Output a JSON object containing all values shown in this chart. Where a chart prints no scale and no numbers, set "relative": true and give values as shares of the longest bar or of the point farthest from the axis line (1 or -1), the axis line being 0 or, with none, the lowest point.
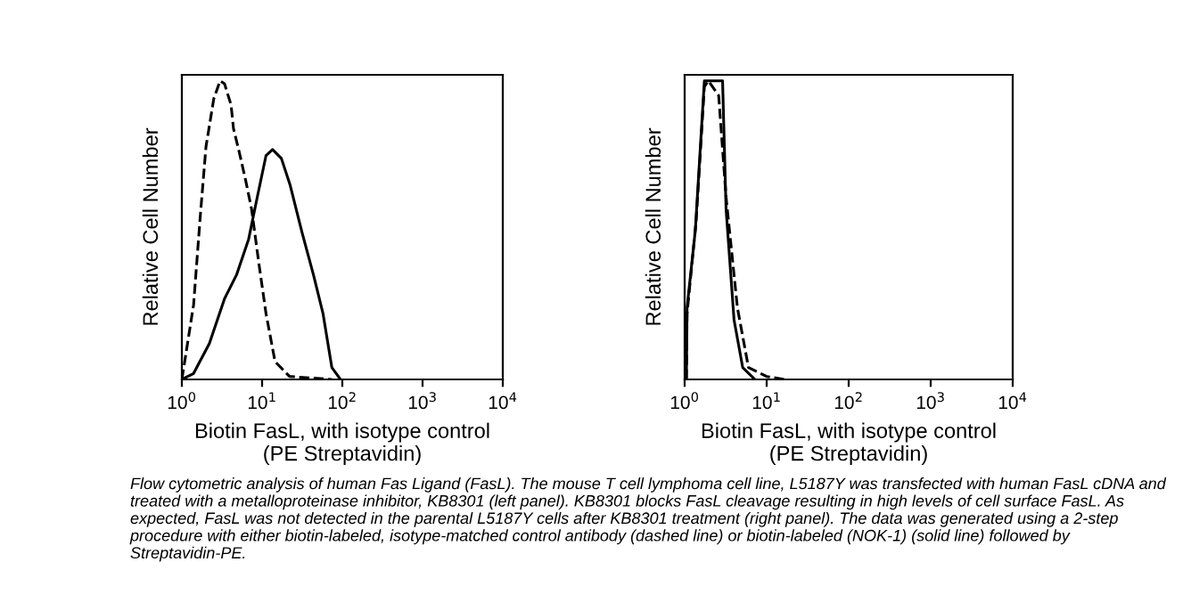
{
  "chart_data": [
    {
      "type": "line",
      "relative": true,
      "log": "x",
      "xlabel": "Biotin FasL, with isotype control\n(PE Streptavidin)",
      "ylabel": "Relative Cell Number",
      "xlim": [
        1,
        10000
      ],
      "xticks": [
        {
          "value": 1,
          "label": "10$^{0}$"
        },
        {
          "value": 10,
          "label": "10$^{1}$"
        },
        {
          "value": 100,
          "label": "10$^{2}$"
        },
        {
          "value": 1000,
          "label": "10$^{3}$"
        },
        {
          "value": 10000,
          "label": "10$^{4}$"
        }
      ],
      "grid": false,
      "series": [
        {
          "color": "#000000",
          "line_style": "dashed",
          "x": [
            1,
            1.1,
            1.4,
            1.7,
            2.0,
            2.5,
            3.0,
            3.4,
            4.1,
            4.4,
            5.2,
            6.2,
            7.4,
            9.1,
            11.2,
            14.5,
            22,
            74
          ],
          "values": [
            0,
            0.07,
            0.25,
            0.55,
            0.78,
            0.94,
            1.0,
            0.99,
            0.92,
            0.84,
            0.76,
            0.67,
            0.57,
            0.39,
            0.22,
            0.06,
            0.01,
            0
          ]
        },
        {
          "color": "#000000",
          "line_style": "solid",
          "x": [
            1,
            1.4,
            2.2,
            3.4,
            4.8,
            6.8,
            8.7,
            11.2,
            13.5,
            17.4,
            22.4,
            31.6,
            43.7,
            57.5,
            74,
            95
          ],
          "values": [
            0,
            0.02,
            0.12,
            0.27,
            0.35,
            0.47,
            0.61,
            0.75,
            0.77,
            0.74,
            0.65,
            0.49,
            0.35,
            0.22,
            0.04,
            0
          ]
        }
      ],
      "annotations": [
        "Flow cytometric analysis of human Fas Ligand (FasL). The mouse T cell lymphoma cell line, L5187Y was transfected with human FasL cDNA and treated with a metalloproteinase inhibitor, KB8301 (left panel). KB8301 blocks FasL cleavage resulting in high levels of cell surface FasL. As expected, FasL was not detected in the parental L5187Y cells after KB8301 treatment (right panel). The data was generated using a 2-step procedure with either biotin-labeled, isotype-matched control antibody (dashed line) or biotin-labeled (NOK-1) (solid line) followed by Streptavidin-PE."
      ]
    },
    {
      "type": "line",
      "relative": true,
      "log": "x",
      "xlabel": "Biotin FasL, with isotype control\n(PE Streptavidin)",
      "ylabel": "Relative Cell Number",
      "xlim": [
        1,
        10000
      ],
      "xticks": [
        {
          "value": 1,
          "label": "10$^{0}$"
        },
        {
          "value": 10,
          "label": "10$^{1}$"
        },
        {
          "value": 100,
          "label": "10$^{2}$"
        },
        {
          "value": 1000,
          "label": "10$^{3}$"
        },
        {
          "value": 10000,
          "label": "10$^{4}$"
        }
      ],
      "grid": false,
      "series": [
        {
          "color": "#000000",
          "line_style": "dashed",
          "x": [
            1.05,
            1.07,
            1.38,
            1.74,
            1.95,
            2.6,
            3.2,
            4.4,
            6.0,
            10,
            16.6
          ],
          "values": [
            0,
            0.22,
            0.53,
            0.98,
            1,
            0.95,
            0.61,
            0.24,
            0.04,
            0.01,
            0
          ]
        },
        {
          "color": "#000000",
          "line_style": "solid",
          "x": [
            1.05,
            1.07,
            1.35,
            1.74,
            2.9,
            3.2,
            4.0,
            5.1,
            7.2
          ],
          "values": [
            0,
            0.24,
            0.5,
            1,
            1,
            0.57,
            0.2,
            0.04,
            0
          ]
        }
      ]
    }
  ]
}
